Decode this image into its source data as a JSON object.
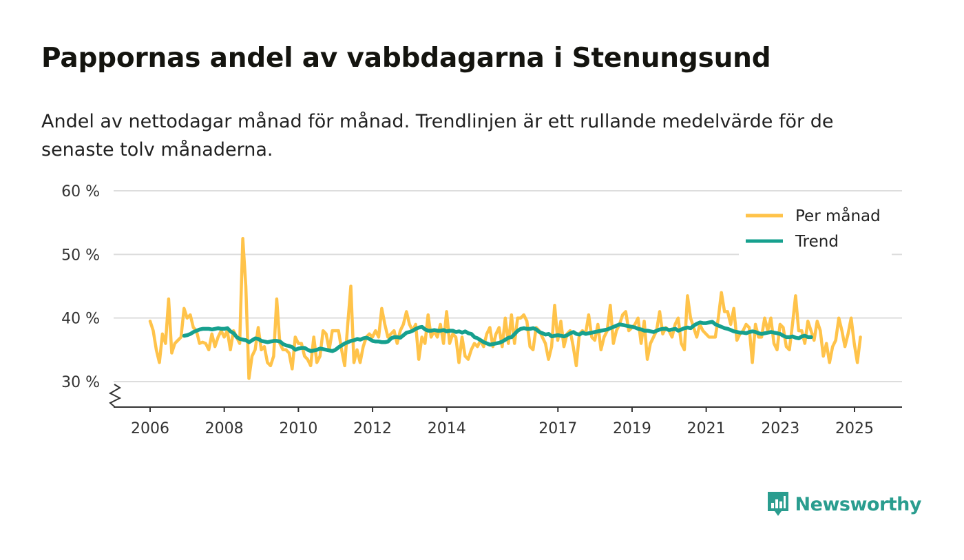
{
  "header": {
    "title": "Pappornas andel av vabbdagarna i Stenungsund",
    "subtitle": "Andel av nettodagar månad för månad. Trendlinjen är ett rullande medelvärde för de senaste tolv månaderna."
  },
  "brand": {
    "name": "Newsworthy",
    "color": "#2a9d8f",
    "icon": "bar-chart-speech-bubble-icon"
  },
  "colors": {
    "monthly": "#ffc34a",
    "trend": "#16a08e",
    "grid": "#dddddd",
    "axis": "#333333"
  },
  "chart_data": {
    "type": "line",
    "title": "Pappornas andel av vabbdagarna i Stenungsund",
    "xlabel": "",
    "ylabel": "",
    "x_unit": "year (decimal)",
    "xlim": [
      2005.05,
      2026.3
    ],
    "ylim": [
      26,
      60
    ],
    "y_ticks": [
      30,
      40,
      50,
      60
    ],
    "y_tick_labels": [
      "30 %",
      "40 %",
      "50 %",
      "60 %"
    ],
    "y_axis_break": true,
    "x_ticks": [
      2006,
      2008,
      2010,
      2012,
      2014,
      2017,
      2019,
      2021,
      2023,
      2025
    ],
    "x_tick_labels": [
      "2006",
      "2008",
      "2010",
      "2012",
      "2014",
      "2017",
      "2019",
      "2021",
      "2023",
      "2025"
    ],
    "grid": true,
    "legend": {
      "position": "top-right",
      "entries": [
        "Per månad",
        "Trend"
      ]
    },
    "x_start": 2006.0,
    "x_step": 0.0833,
    "series": [
      {
        "name": "Per månad",
        "values": [
          39.5,
          38,
          35,
          33,
          37.5,
          36,
          43,
          34.5,
          36,
          36.5,
          37,
          41.5,
          40,
          40.5,
          38.5,
          38,
          36,
          36.2,
          36,
          35,
          37.5,
          35.5,
          37,
          38,
          37,
          38,
          35,
          38,
          37,
          36,
          52.5,
          45,
          30.5,
          34,
          35,
          38.5,
          35,
          35.5,
          33,
          32.5,
          34,
          43,
          36,
          35,
          35,
          34.5,
          32,
          37,
          36,
          36,
          34,
          33.5,
          32.5,
          37,
          33,
          34,
          38,
          37.5,
          35,
          38,
          38,
          38,
          35,
          32.5,
          39,
          45,
          33,
          35,
          33,
          35.5,
          37,
          37.5,
          37,
          38,
          37,
          41.5,
          39,
          37,
          37.5,
          38,
          36,
          38,
          39,
          41,
          39,
          38,
          39,
          33.5,
          37,
          36,
          40.5,
          37,
          38,
          37,
          39,
          36,
          41,
          36,
          37.5,
          37,
          33,
          37,
          34,
          33.5,
          35,
          36,
          35.5,
          36.5,
          35.5,
          37.5,
          38.5,
          35.5,
          37.5,
          38.5,
          35.5,
          40,
          36,
          40.5,
          36,
          40,
          40,
          40.5,
          39.5,
          35.5,
          35,
          38.5,
          38,
          37,
          36,
          33.5,
          35.5,
          42,
          36.5,
          39.5,
          35.5,
          37.5,
          38,
          35.5,
          32.5,
          37.5,
          38,
          37.5,
          40.5,
          37,
          36.5,
          39,
          35,
          37,
          38,
          42,
          36,
          38,
          39,
          40.5,
          41,
          38,
          38.5,
          39,
          40,
          36,
          39.5,
          33.5,
          36,
          37,
          38,
          41,
          37.5,
          38.5,
          38,
          37,
          39,
          40,
          36,
          35,
          43.5,
          40,
          38.5,
          37,
          39,
          38,
          37.5,
          37,
          37,
          37,
          40,
          44,
          41,
          41,
          39,
          41.5,
          36.5,
          37.5,
          38,
          39,
          38.5,
          33,
          39,
          37,
          37,
          40,
          38,
          40,
          36,
          35,
          39,
          38.5,
          35.5,
          35,
          39,
          43.5,
          38,
          38,
          36,
          39.5,
          38,
          36.5,
          39.5,
          38,
          34,
          36,
          33,
          35.5,
          36.5,
          40,
          38,
          35.5,
          37.5,
          40,
          36,
          33,
          37
        ]
      },
      {
        "name": "Trend",
        "x_start": 2006.92,
        "values": [
          37.2,
          37.3,
          37.5,
          37.8,
          38.0,
          38.2,
          38.3,
          38.3,
          38.3,
          38.2,
          38.3,
          38.4,
          38.3,
          38.3,
          38.4,
          37.9,
          37.6,
          37.0,
          36.7,
          36.6,
          36.5,
          36.2,
          36.5,
          36.8,
          36.7,
          36.4,
          36.3,
          36.2,
          36.3,
          36.4,
          36.4,
          36.3,
          35.9,
          35.7,
          35.6,
          35.4,
          35.0,
          35.2,
          35.3,
          35.3,
          35.0,
          34.8,
          34.9,
          35.0,
          35.2,
          35.1,
          35.0,
          34.9,
          34.8,
          35.0,
          35.4,
          35.7,
          36.0,
          36.2,
          36.4,
          36.5,
          36.7,
          36.6,
          36.8,
          36.9,
          36.7,
          36.4,
          36.3,
          36.3,
          36.2,
          36.2,
          36.3,
          36.8,
          37.0,
          37.0,
          36.9,
          37.3,
          37.7,
          37.8,
          38.0,
          38.3,
          38.5,
          38.6,
          38.2,
          38.0,
          38.0,
          38.1,
          38.0,
          38.0,
          38.1,
          37.9,
          38.0,
          38.0,
          37.8,
          37.9,
          37.7,
          37.9,
          37.6,
          37.5,
          37.0,
          36.8,
          36.5,
          36.2,
          36.0,
          35.8,
          35.9,
          36.0,
          36.1,
          36.3,
          36.6,
          36.9,
          37.0,
          37.5,
          38.0,
          38.3,
          38.4,
          38.3,
          38.3,
          38.4,
          38.2,
          37.8,
          37.6,
          37.4,
          37.5,
          37.1,
          37.2,
          37.3,
          37.2,
          37.1,
          37.3,
          37.6,
          37.8,
          37.5,
          37.4,
          37.7,
          37.5,
          37.6,
          37.7,
          37.8,
          37.9,
          38.0,
          38.1,
          38.2,
          38.4,
          38.6,
          38.8,
          39.0,
          38.9,
          38.8,
          38.7,
          38.6,
          38.5,
          38.3,
          38.2,
          38.0,
          38.0,
          37.9,
          37.8,
          38.0,
          38.2,
          38.3,
          38.3,
          38.1,
          38.2,
          38.3,
          38.0,
          38.2,
          38.4,
          38.5,
          38.4,
          38.8,
          39.1,
          39.3,
          39.2,
          39.2,
          39.3,
          39.4,
          39.0,
          38.8,
          38.6,
          38.4,
          38.3,
          38.1,
          37.9,
          37.8,
          37.7,
          37.7,
          37.6,
          37.8,
          37.9,
          37.8,
          37.6,
          37.5,
          37.6,
          37.7,
          37.8,
          37.7,
          37.6,
          37.5,
          37.2,
          37.0,
          37.0,
          37.1,
          36.9,
          36.8,
          37.1,
          37.2,
          37.0,
          37.0
        ]
      }
    ]
  }
}
